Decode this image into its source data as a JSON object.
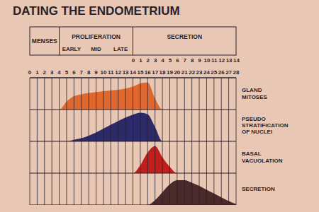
{
  "chart_data": {
    "type": "area",
    "title": "DATING THE ENDOMETRIUM",
    "phases": [
      {
        "label": "MENSES",
        "days": [
          0,
          4
        ]
      },
      {
        "label": "PROLIFERATION",
        "days": [
          4,
          14
        ],
        "subphases": [
          "EARLY",
          "MID",
          "LATE"
        ]
      },
      {
        "label": "SECRETION",
        "days": [
          14,
          28
        ],
        "axis": "x2"
      }
    ],
    "x2lim": [
      0,
      14
    ],
    "x2ticks": [
      0,
      1,
      2,
      3,
      4,
      5,
      6,
      7,
      8,
      9,
      10,
      11,
      12,
      13,
      14
    ],
    "x": [
      0,
      1,
      2,
      3,
      4,
      5,
      6,
      7,
      8,
      9,
      10,
      11,
      12,
      13,
      14,
      15,
      16,
      17,
      18,
      19,
      20,
      21,
      22,
      23,
      24,
      25,
      26,
      27,
      28
    ],
    "xlim": [
      0,
      28
    ],
    "xticks": [
      0,
      1,
      2,
      3,
      4,
      5,
      6,
      7,
      8,
      9,
      10,
      11,
      12,
      13,
      14,
      15,
      16,
      17,
      18,
      19,
      20,
      21,
      22,
      23,
      24,
      25,
      26,
      27,
      28
    ],
    "ylim": [
      0,
      1
    ],
    "grid": true,
    "tick_labels": "x",
    "series": [
      {
        "name": "GLAND MITOSES",
        "color": "#e0682e",
        "values": [
          0,
          0,
          0,
          0,
          0,
          0.25,
          0.42,
          0.48,
          0.52,
          0.55,
          0.58,
          0.6,
          0.62,
          0.66,
          0.72,
          0.82,
          0.85,
          0.35,
          0,
          0,
          0,
          0,
          0,
          0,
          0,
          0,
          0,
          0,
          0
        ]
      },
      {
        "name": "PSEUDO STRATIFICATION OF NUCLEI",
        "color": "#2c2a68",
        "values": [
          0,
          0,
          0,
          0,
          0,
          0,
          0.05,
          0.1,
          0.18,
          0.28,
          0.4,
          0.52,
          0.64,
          0.75,
          0.84,
          0.9,
          0.85,
          0.45,
          0,
          0,
          0,
          0,
          0,
          0,
          0,
          0,
          0,
          0,
          0
        ]
      },
      {
        "name": "BASAL VACUOLATION",
        "color": "#c21f1c",
        "values": [
          0,
          0,
          0,
          0,
          0,
          0,
          0,
          0,
          0,
          0,
          0,
          0,
          0,
          0,
          0,
          0.25,
          0.65,
          0.85,
          0.5,
          0.2,
          0,
          0,
          0,
          0,
          0,
          0,
          0,
          0,
          0
        ]
      },
      {
        "name": "SECRETION",
        "color": "#4a2a2a",
        "values": [
          0,
          0,
          0,
          0,
          0,
          0,
          0,
          0,
          0,
          0,
          0,
          0,
          0,
          0,
          0,
          0,
          0,
          0.15,
          0.4,
          0.65,
          0.78,
          0.78,
          0.7,
          0.6,
          0.48,
          0.36,
          0.24,
          0.12,
          0.03
        ]
      }
    ]
  }
}
